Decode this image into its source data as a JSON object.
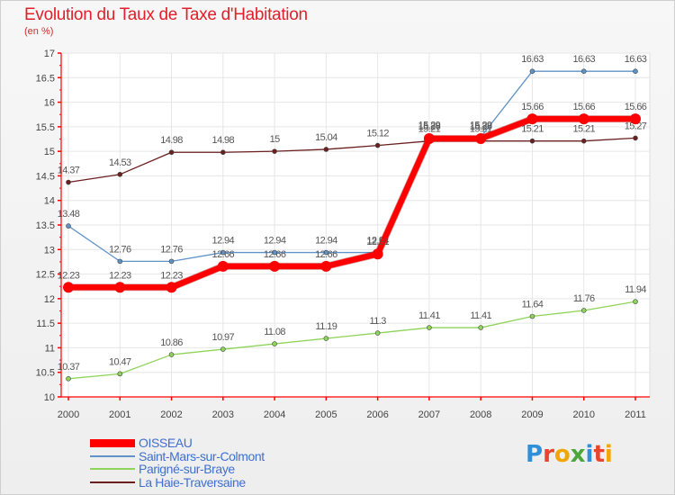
{
  "title": "Evolution du Taux de Taxe d'Habitation",
  "unit": "(en %)",
  "logo": {
    "text": "Proxiti",
    "colors": [
      "#2f8fd8",
      "#e8452c",
      "#f0a800",
      "#4aa83a",
      "#2f8fd8",
      "#e8452c",
      "#f0a800"
    ]
  },
  "chart_data": {
    "type": "line",
    "x": [
      "2000",
      "2001",
      "2002",
      "2003",
      "2004",
      "2005",
      "2006",
      "2007",
      "2008",
      "2009",
      "2010",
      "2011"
    ],
    "ylim": [
      10,
      17
    ],
    "yticks": [
      "10",
      "10.5",
      "11",
      "11.5",
      "12",
      "12.5",
      "13",
      "13.5",
      "14",
      "14.5",
      "15",
      "15.5",
      "16",
      "16.5",
      "17"
    ],
    "grid": true,
    "legend_position": "bottom-left",
    "series": [
      {
        "name": "La Haie-Traversaine",
        "color": "#6b1f1f",
        "width": 1.3,
        "dot": 5,
        "values": [
          14.37,
          14.53,
          14.98,
          14.98,
          15,
          15.04,
          15.12,
          15.21,
          15.21,
          15.21,
          15.21,
          15.27
        ],
        "labels": [
          "14.37",
          "14.53",
          "14.98",
          "14.98",
          "15",
          "15.04",
          "15.12",
          "15.21",
          "15.21",
          "15.21",
          "15.21",
          "15.27"
        ]
      },
      {
        "name": "Parigné-sur-Braye",
        "color": "#8fd45a",
        "width": 1.3,
        "dot": 5,
        "values": [
          10.37,
          10.47,
          10.86,
          10.97,
          11.08,
          11.19,
          11.3,
          11.41,
          11.41,
          11.64,
          11.76,
          11.94
        ],
        "labels": [
          "10.37",
          "10.47",
          "10.86",
          "10.97",
          "11.08",
          "11.19",
          "11.3",
          "11.41",
          "11.41",
          "11.64",
          "11.76",
          "11.94"
        ]
      },
      {
        "name": "Saint-Mars-sur-Colmont",
        "color": "#5f93c9",
        "width": 1.3,
        "dot": 5,
        "values": [
          13.48,
          12.76,
          12.76,
          12.94,
          12.94,
          12.94,
          12.94,
          15.29,
          15.29,
          16.63,
          16.63,
          16.63
        ],
        "labels": [
          "13.48",
          "12.76",
          "12.76",
          "12.94",
          "12.94",
          "12.94",
          "12.94",
          "15.29",
          "15.29",
          "16.63",
          "16.63",
          "16.63"
        ]
      },
      {
        "name": "OISSEAU",
        "color": "#ff0000",
        "width": 6.5,
        "dot": 12,
        "values": [
          12.23,
          12.23,
          12.23,
          12.66,
          12.66,
          12.66,
          12.91,
          15.26,
          15.26,
          15.66,
          15.66,
          15.66
        ],
        "labels": [
          "12.23",
          "12.23",
          "12.23",
          "12.66",
          "12.66",
          "12.66",
          "12.91",
          "15.26",
          "15.26",
          "15.66",
          "15.66",
          "15.66"
        ]
      }
    ],
    "legend": [
      {
        "name": "OISSEAU",
        "color": "#ff0000",
        "thick": 9
      },
      {
        "name": "Saint-Mars-sur-Colmont",
        "color": "#5f93c9",
        "thick": 2
      },
      {
        "name": "Parigné-sur-Braye",
        "color": "#8fd45a",
        "thick": 2
      },
      {
        "name": "La Haie-Traversaine",
        "color": "#6b1f1f",
        "thick": 2
      }
    ]
  }
}
